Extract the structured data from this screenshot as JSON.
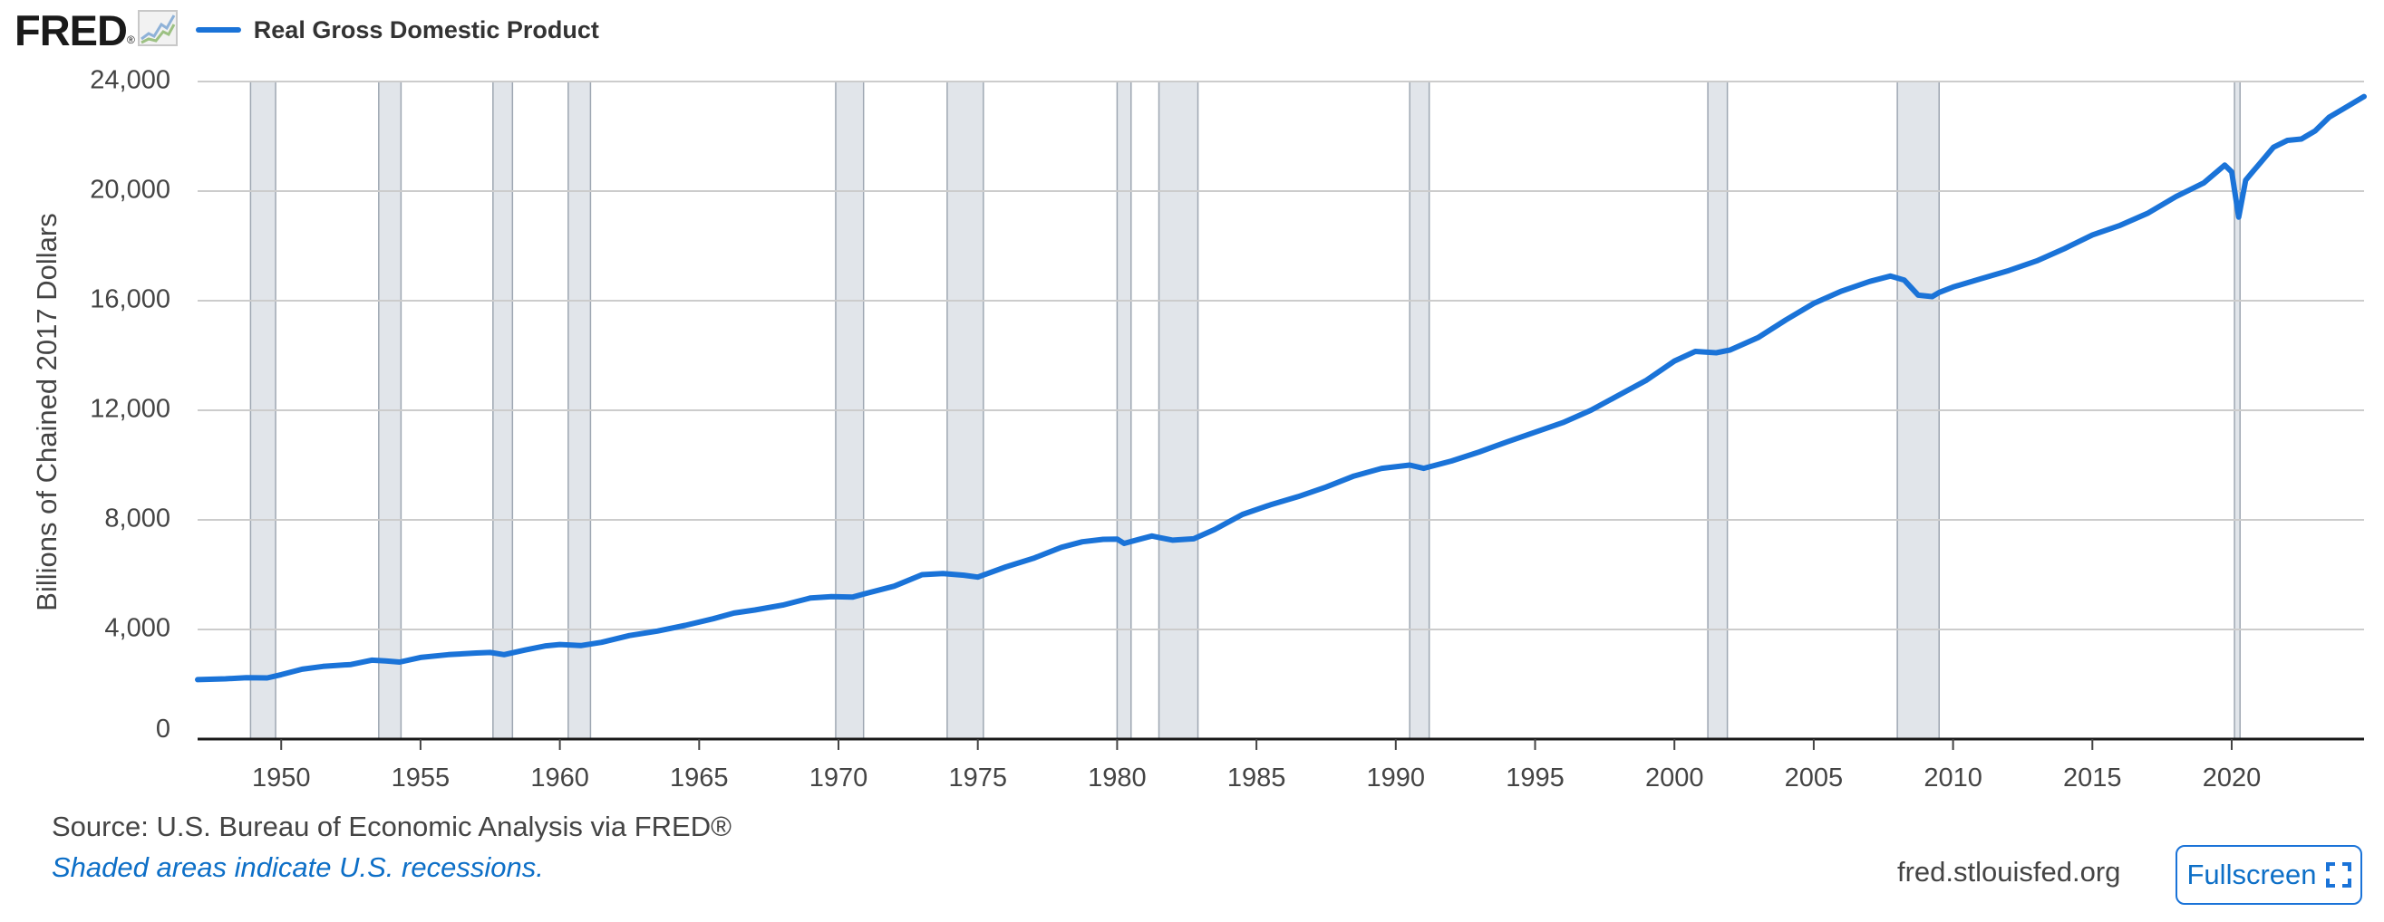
{
  "brand": {
    "logo_text": "FRED",
    "logo_trademark": "®"
  },
  "legend": {
    "label": "Real Gross Domestic Product",
    "color": "#1a73d8"
  },
  "footer": {
    "source": "Source: U.S. Bureau of Economic Analysis via FRED®",
    "recession_note": "Shaded areas indicate U.S. recessions.",
    "url": "fred.stlouisfed.org",
    "fullscreen_label": "Fullscreen",
    "fullscreen_icon": "fullscreen-icon"
  },
  "colors": {
    "line": "#1a73d8",
    "recession": "#e1e5ea",
    "recession_edge": "#9ea7b2",
    "grid": "#cccccc",
    "link": "#0d6fc7"
  },
  "chart_data": {
    "type": "line",
    "title": "",
    "xlabel": "",
    "ylabel": "Billions of Chained 2017 Dollars",
    "xlim": [
      1947.0,
      2024.75
    ],
    "ylim": [
      0,
      24000
    ],
    "yticks": [
      0,
      4000,
      8000,
      12000,
      16000,
      20000,
      24000
    ],
    "ytick_labels": [
      "0",
      "4,000",
      "8,000",
      "12,000",
      "16,000",
      "20,000",
      "24,000"
    ],
    "xticks": [
      1950,
      1955,
      1960,
      1965,
      1970,
      1975,
      1980,
      1985,
      1990,
      1995,
      2000,
      2005,
      2010,
      2015,
      2020
    ],
    "grid": true,
    "legend_position": "top-left",
    "recessions": [
      [
        1948.9,
        1949.8
      ],
      [
        1953.5,
        1954.3
      ],
      [
        1957.6,
        1958.3
      ],
      [
        1960.3,
        1961.1
      ],
      [
        1969.9,
        1970.9
      ],
      [
        1973.9,
        1975.2
      ],
      [
        1980.0,
        1980.5
      ],
      [
        1981.5,
        1982.9
      ],
      [
        1990.5,
        1991.2
      ],
      [
        2001.2,
        2001.9
      ],
      [
        2008.0,
        2009.5
      ],
      [
        2020.1,
        2020.3
      ]
    ],
    "series": [
      {
        "name": "Real Gross Domestic Product",
        "x": [
          1947.0,
          1948.0,
          1948.75,
          1949.5,
          1950.0,
          1950.75,
          1951.5,
          1952.5,
          1953.25,
          1953.75,
          1954.25,
          1955.0,
          1956.0,
          1957.0,
          1957.5,
          1958.0,
          1958.75,
          1959.5,
          1960.0,
          1960.75,
          1961.5,
          1962.5,
          1963.5,
          1964.5,
          1965.5,
          1966.25,
          1967.0,
          1968.0,
          1969.0,
          1969.75,
          1970.5,
          1971.0,
          1972.0,
          1973.0,
          1973.75,
          1974.5,
          1975.0,
          1976.0,
          1977.0,
          1978.0,
          1978.75,
          1979.5,
          1980.0,
          1980.25,
          1980.75,
          1981.25,
          1981.5,
          1982.0,
          1982.75,
          1983.5,
          1984.5,
          1985.5,
          1986.5,
          1987.5,
          1988.5,
          1989.5,
          1990.5,
          1991.0,
          1992.0,
          1993.0,
          1994.0,
          1995.0,
          1996.0,
          1997.0,
          1998.0,
          1999.0,
          2000.0,
          2000.75,
          2001.5,
          2002.0,
          2003.0,
          2004.0,
          2005.0,
          2006.0,
          2007.0,
          2007.75,
          2008.25,
          2008.75,
          2009.25,
          2009.5,
          2010.0,
          2011.0,
          2012.0,
          2013.0,
          2014.0,
          2015.0,
          2016.0,
          2017.0,
          2018.0,
          2019.0,
          2019.75,
          2020.0,
          2020.25,
          2020.5,
          2020.75,
          2021.0,
          2021.5,
          2022.0,
          2022.5,
          2023.0,
          2023.5,
          2024.0,
          2024.75
        ],
        "values": [
          2170,
          2200,
          2240,
          2230,
          2350,
          2550,
          2650,
          2720,
          2880,
          2850,
          2810,
          2980,
          3080,
          3140,
          3160,
          3080,
          3250,
          3400,
          3450,
          3410,
          3530,
          3780,
          3940,
          4150,
          4390,
          4600,
          4710,
          4890,
          5150,
          5200,
          5180,
          5320,
          5580,
          6000,
          6040,
          5980,
          5910,
          6280,
          6600,
          7000,
          7200,
          7290,
          7300,
          7140,
          7280,
          7410,
          7360,
          7260,
          7310,
          7650,
          8200,
          8550,
          8850,
          9200,
          9600,
          9880,
          10000,
          9880,
          10150,
          10480,
          10850,
          11200,
          11550,
          12000,
          12550,
          13100,
          13800,
          14150,
          14100,
          14200,
          14650,
          15300,
          15900,
          16350,
          16700,
          16900,
          16750,
          16200,
          16150,
          16300,
          16500,
          16800,
          17100,
          17450,
          17900,
          18400,
          18750,
          19200,
          19800,
          20300,
          20950,
          20700,
          19050,
          20400,
          20700,
          21000,
          21600,
          21850,
          21900,
          22200,
          22700,
          23000,
          23450
        ]
      }
    ]
  }
}
